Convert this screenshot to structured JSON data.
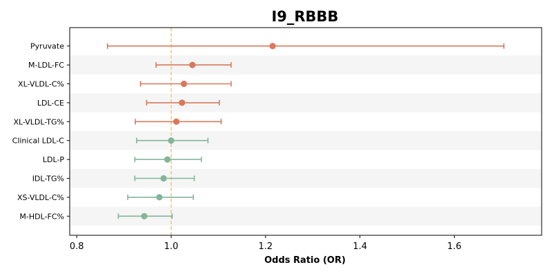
{
  "chart_data": {
    "type": "forest",
    "title": "I9_RBBB",
    "xlabel": "Odds Ratio (OR)",
    "ylabel": "",
    "xlim": [
      0.785,
      1.785
    ],
    "xticks": [
      0.8,
      1.0,
      1.2,
      1.4,
      1.6
    ],
    "xtick_labels": [
      "0.8",
      "1.0",
      "1.2",
      "1.4",
      "1.6"
    ],
    "reference_line": 1.0,
    "grid": false,
    "row_stripes": true,
    "colors": {
      "positive": "#d9785a",
      "negative": "#82b59a",
      "reference": "#f0c674",
      "stripe": "#f5f5f5"
    },
    "points": [
      {
        "label": "Pyruvate",
        "or": 1.215,
        "lower": 0.865,
        "upper": 1.705,
        "group": "positive"
      },
      {
        "label": "M-LDL-FC",
        "or": 1.045,
        "lower": 0.968,
        "upper": 1.127,
        "group": "positive"
      },
      {
        "label": "XL-VLDL-C%",
        "or": 1.027,
        "lower": 0.935,
        "upper": 1.127,
        "group": "positive"
      },
      {
        "label": "LDL-CE",
        "or": 1.023,
        "lower": 0.948,
        "upper": 1.102,
        "group": "positive"
      },
      {
        "label": "XL-VLDL-TG%",
        "or": 1.011,
        "lower": 0.924,
        "upper": 1.106,
        "group": "positive"
      },
      {
        "label": "Clinical LDL-C",
        "or": 1.0,
        "lower": 0.927,
        "upper": 1.078,
        "group": "negative"
      },
      {
        "label": "LDL-P",
        "or": 0.992,
        "lower": 0.923,
        "upper": 1.064,
        "group": "negative"
      },
      {
        "label": "IDL-TG%",
        "or": 0.984,
        "lower": 0.923,
        "upper": 1.049,
        "group": "negative"
      },
      {
        "label": "XS-VLDL-C%",
        "or": 0.975,
        "lower": 0.908,
        "upper": 1.047,
        "group": "negative"
      },
      {
        "label": "M-HDL-FC%",
        "or": 0.943,
        "lower": 0.888,
        "upper": 1.002,
        "group": "negative"
      }
    ]
  }
}
